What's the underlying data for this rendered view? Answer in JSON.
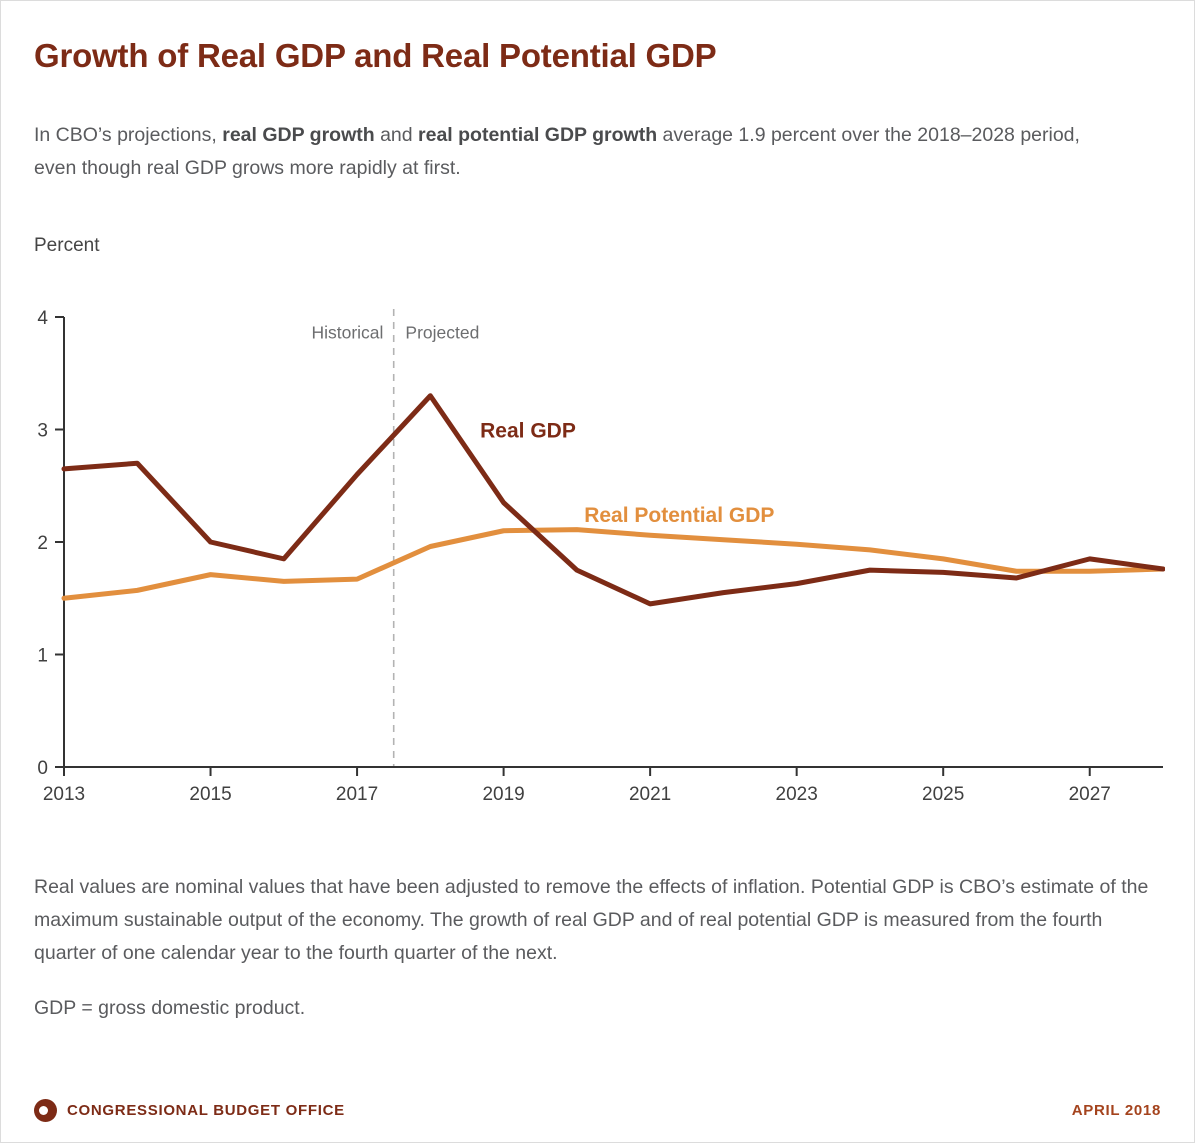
{
  "page": {
    "title": "Growth of Real GDP and Real Potential GDP",
    "intro": {
      "part1": "In CBO’s projections, ",
      "bold1": "real GDP growth",
      "part2": " and ",
      "bold2": "real potential GDP growth",
      "part3": " average 1.9 percent over the 2018–2028 period, even though real GDP grows more rapidly at first."
    },
    "axis_unit_label": "Percent",
    "notes": {
      "para1": "Real values are nominal values that have been adjusted to remove the effects of inflation. Potential GDP is CBO’s estimate of the maximum sustainable output of the economy. The growth of real GDP and of real potential GDP is measured from the fourth quarter of one calendar year to the fourth quarter of the next.",
      "para2": "GDP = gross domestic product."
    },
    "footer": {
      "org": "CONGRESSIONAL BUDGET OFFICE",
      "date": "APRIL 2018"
    }
  },
  "colors": {
    "maroon": "#7d2b16",
    "orange": "#e28f3e",
    "text_gray": "#5a5b5e",
    "axis": "#333333",
    "tick_label": "#404040",
    "divider_gray": "#b3b3b3",
    "zone_label_gray": "#6d6e70"
  },
  "chart_data": {
    "type": "line",
    "title": "Growth of Real GDP and Real Potential GDP",
    "ylabel": "Percent",
    "xlabel": "",
    "x": [
      2013,
      2014,
      2015,
      2016,
      2017,
      2018,
      2019,
      2020,
      2021,
      2022,
      2023,
      2024,
      2025,
      2026,
      2027,
      2028
    ],
    "series": [
      {
        "name": "Real GDP",
        "color": "#7d2b16",
        "values": [
          2.65,
          2.7,
          2.0,
          1.85,
          2.6,
          3.3,
          2.35,
          1.75,
          1.45,
          1.55,
          1.63,
          1.75,
          1.73,
          1.68,
          1.85,
          1.76
        ]
      },
      {
        "name": "Real Potential GDP",
        "color": "#e28f3e",
        "values": [
          1.5,
          1.57,
          1.71,
          1.65,
          1.67,
          1.96,
          2.1,
          2.11,
          2.06,
          2.02,
          1.98,
          1.93,
          1.85,
          1.74,
          1.74,
          1.76
        ]
      }
    ],
    "xlim": [
      2013,
      2028
    ],
    "ylim": [
      0,
      4
    ],
    "yticks": [
      0,
      1,
      2,
      3,
      4
    ],
    "xticks": [
      2013,
      2015,
      2017,
      2019,
      2021,
      2023,
      2025,
      2027
    ],
    "grid": false,
    "legend_position": "inline-labels",
    "divider_x": 2017.5,
    "annotations": [
      {
        "text": "Historical",
        "x": 2017.36,
        "y": 3.81,
        "anchor": "end",
        "size": 17.5,
        "bold": false,
        "color": "#6d6e70"
      },
      {
        "text": "Projected",
        "x": 2017.66,
        "y": 3.81,
        "anchor": "start",
        "size": 17.5,
        "bold": false,
        "color": "#6d6e70"
      },
      {
        "text": "Real GDP",
        "x": 2018.68,
        "y": 2.93,
        "anchor": "start",
        "size": 21,
        "bold": true,
        "color": "#7d2b16"
      },
      {
        "text": "Real Potential GDP",
        "x": 2020.1,
        "y": 2.18,
        "anchor": "start",
        "size": 21,
        "bold": true,
        "color": "#e28f3e"
      }
    ]
  }
}
